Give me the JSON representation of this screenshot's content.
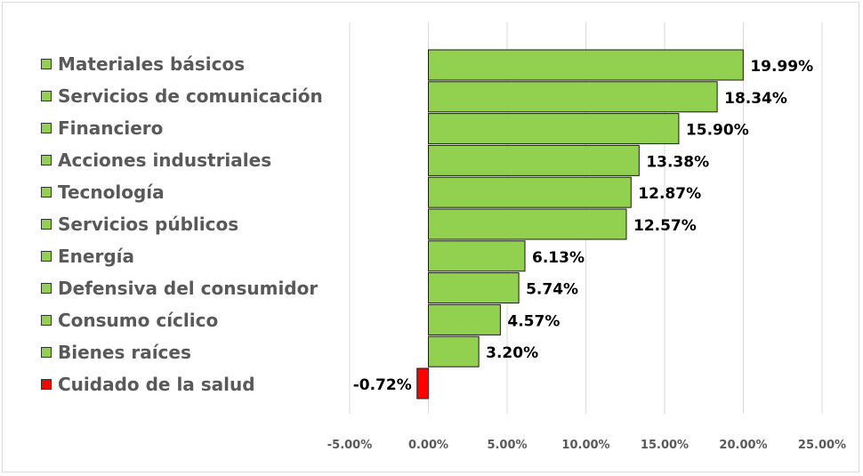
{
  "chart_data": {
    "type": "bar",
    "orientation": "horizontal",
    "categories": [
      "Materiales básicos",
      "Servicios de comunicación",
      "Financiero",
      "Acciones industriales",
      "Tecnología",
      "Servicios públicos",
      "Energía",
      "Defensiva del consumidor",
      "Consumo cíclico",
      "Bienes raíces",
      "Cuidado de la salud"
    ],
    "values": [
      19.99,
      18.34,
      15.9,
      13.38,
      12.87,
      12.57,
      6.13,
      5.74,
      4.57,
      3.2,
      -0.72
    ],
    "data_labels": [
      "19.99%",
      "18.34%",
      "15.90%",
      "13.38%",
      "12.87%",
      "12.57%",
      "6.13%",
      "5.74%",
      "4.57%",
      "3.20%",
      "-0.72%"
    ],
    "colors": [
      "#92d050",
      "#92d050",
      "#92d050",
      "#92d050",
      "#92d050",
      "#92d050",
      "#92d050",
      "#92d050",
      "#92d050",
      "#92d050",
      "#ff0000"
    ],
    "xlim": [
      -5,
      25
    ],
    "xticks": [
      -5,
      0,
      5,
      10,
      15,
      20,
      25
    ],
    "xtick_labels": [
      "-5.00%",
      "0.00%",
      "5.00%",
      "10.00%",
      "15.00%",
      "20.00%",
      "25.00%"
    ],
    "grid": true,
    "legend_position": "left",
    "title": "",
    "xlabel": "",
    "ylabel": ""
  }
}
